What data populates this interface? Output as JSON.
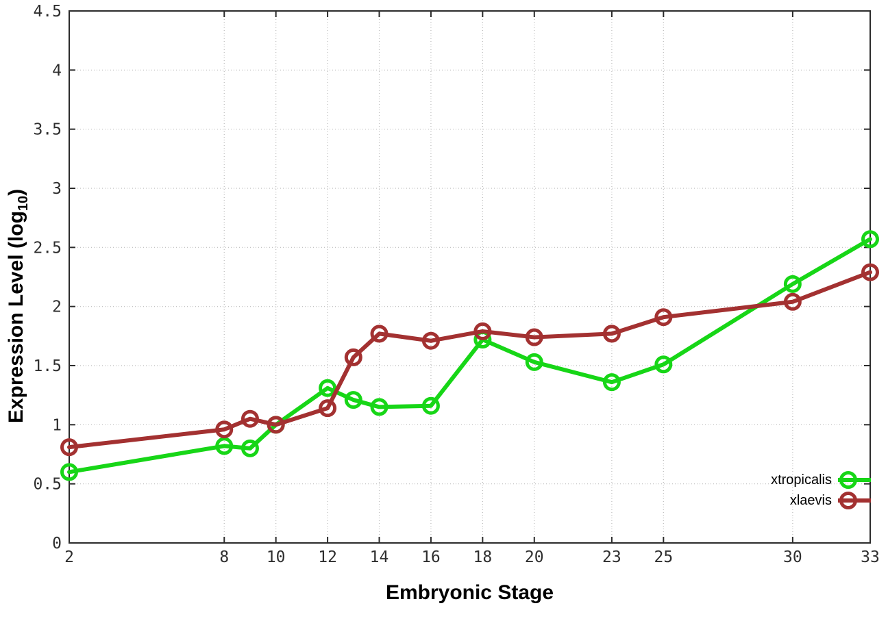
{
  "chart_data": {
    "type": "line",
    "title": "",
    "xlabel": "Embryonic Stage",
    "ylabel": "Expression Level (log10)",
    "ylabel_parts": {
      "main": "Expression Level (log",
      "sub": "10",
      "close": ")"
    },
    "xlim": [
      2,
      33
    ],
    "ylim": [
      0,
      4.5
    ],
    "grid": true,
    "legend_position": "inside-bottom-right",
    "x": [
      2,
      8,
      9,
      10,
      12,
      13,
      14,
      16,
      18,
      20,
      23,
      25,
      30,
      33
    ],
    "xticks": [
      2,
      8,
      10,
      12,
      14,
      16,
      18,
      20,
      23,
      25,
      30,
      33
    ],
    "xtick_labels": [
      "2",
      "8",
      "10",
      "12",
      "14",
      "16",
      "18",
      "20",
      "23",
      "25",
      "30",
      "33"
    ],
    "yticks": [
      0,
      0.5,
      1,
      1.5,
      2,
      2.5,
      3,
      3.5,
      4,
      4.5
    ],
    "ytick_labels": [
      "0",
      "0.5",
      "1",
      "1.5",
      "2",
      "2.5",
      "3",
      "3.5",
      "4",
      "4.5"
    ],
    "series": [
      {
        "name": "xtropicalis",
        "color": "#17d617",
        "values": [
          0.6,
          0.82,
          0.8,
          1.0,
          1.31,
          1.21,
          1.15,
          1.16,
          1.72,
          1.53,
          1.36,
          1.51,
          2.19,
          2.57
        ]
      },
      {
        "name": "xlaevis",
        "color": "#a33131",
        "values": [
          0.81,
          0.96,
          1.05,
          1.0,
          1.14,
          1.57,
          1.77,
          1.71,
          1.79,
          1.74,
          1.77,
          1.91,
          2.04,
          2.29
        ]
      }
    ]
  },
  "styles": {
    "background": "#ffffff",
    "axis": "#2b2b2b",
    "grid": "#bcbcbc",
    "tick_text": "#2e2e2e",
    "label_text": "#000000"
  }
}
